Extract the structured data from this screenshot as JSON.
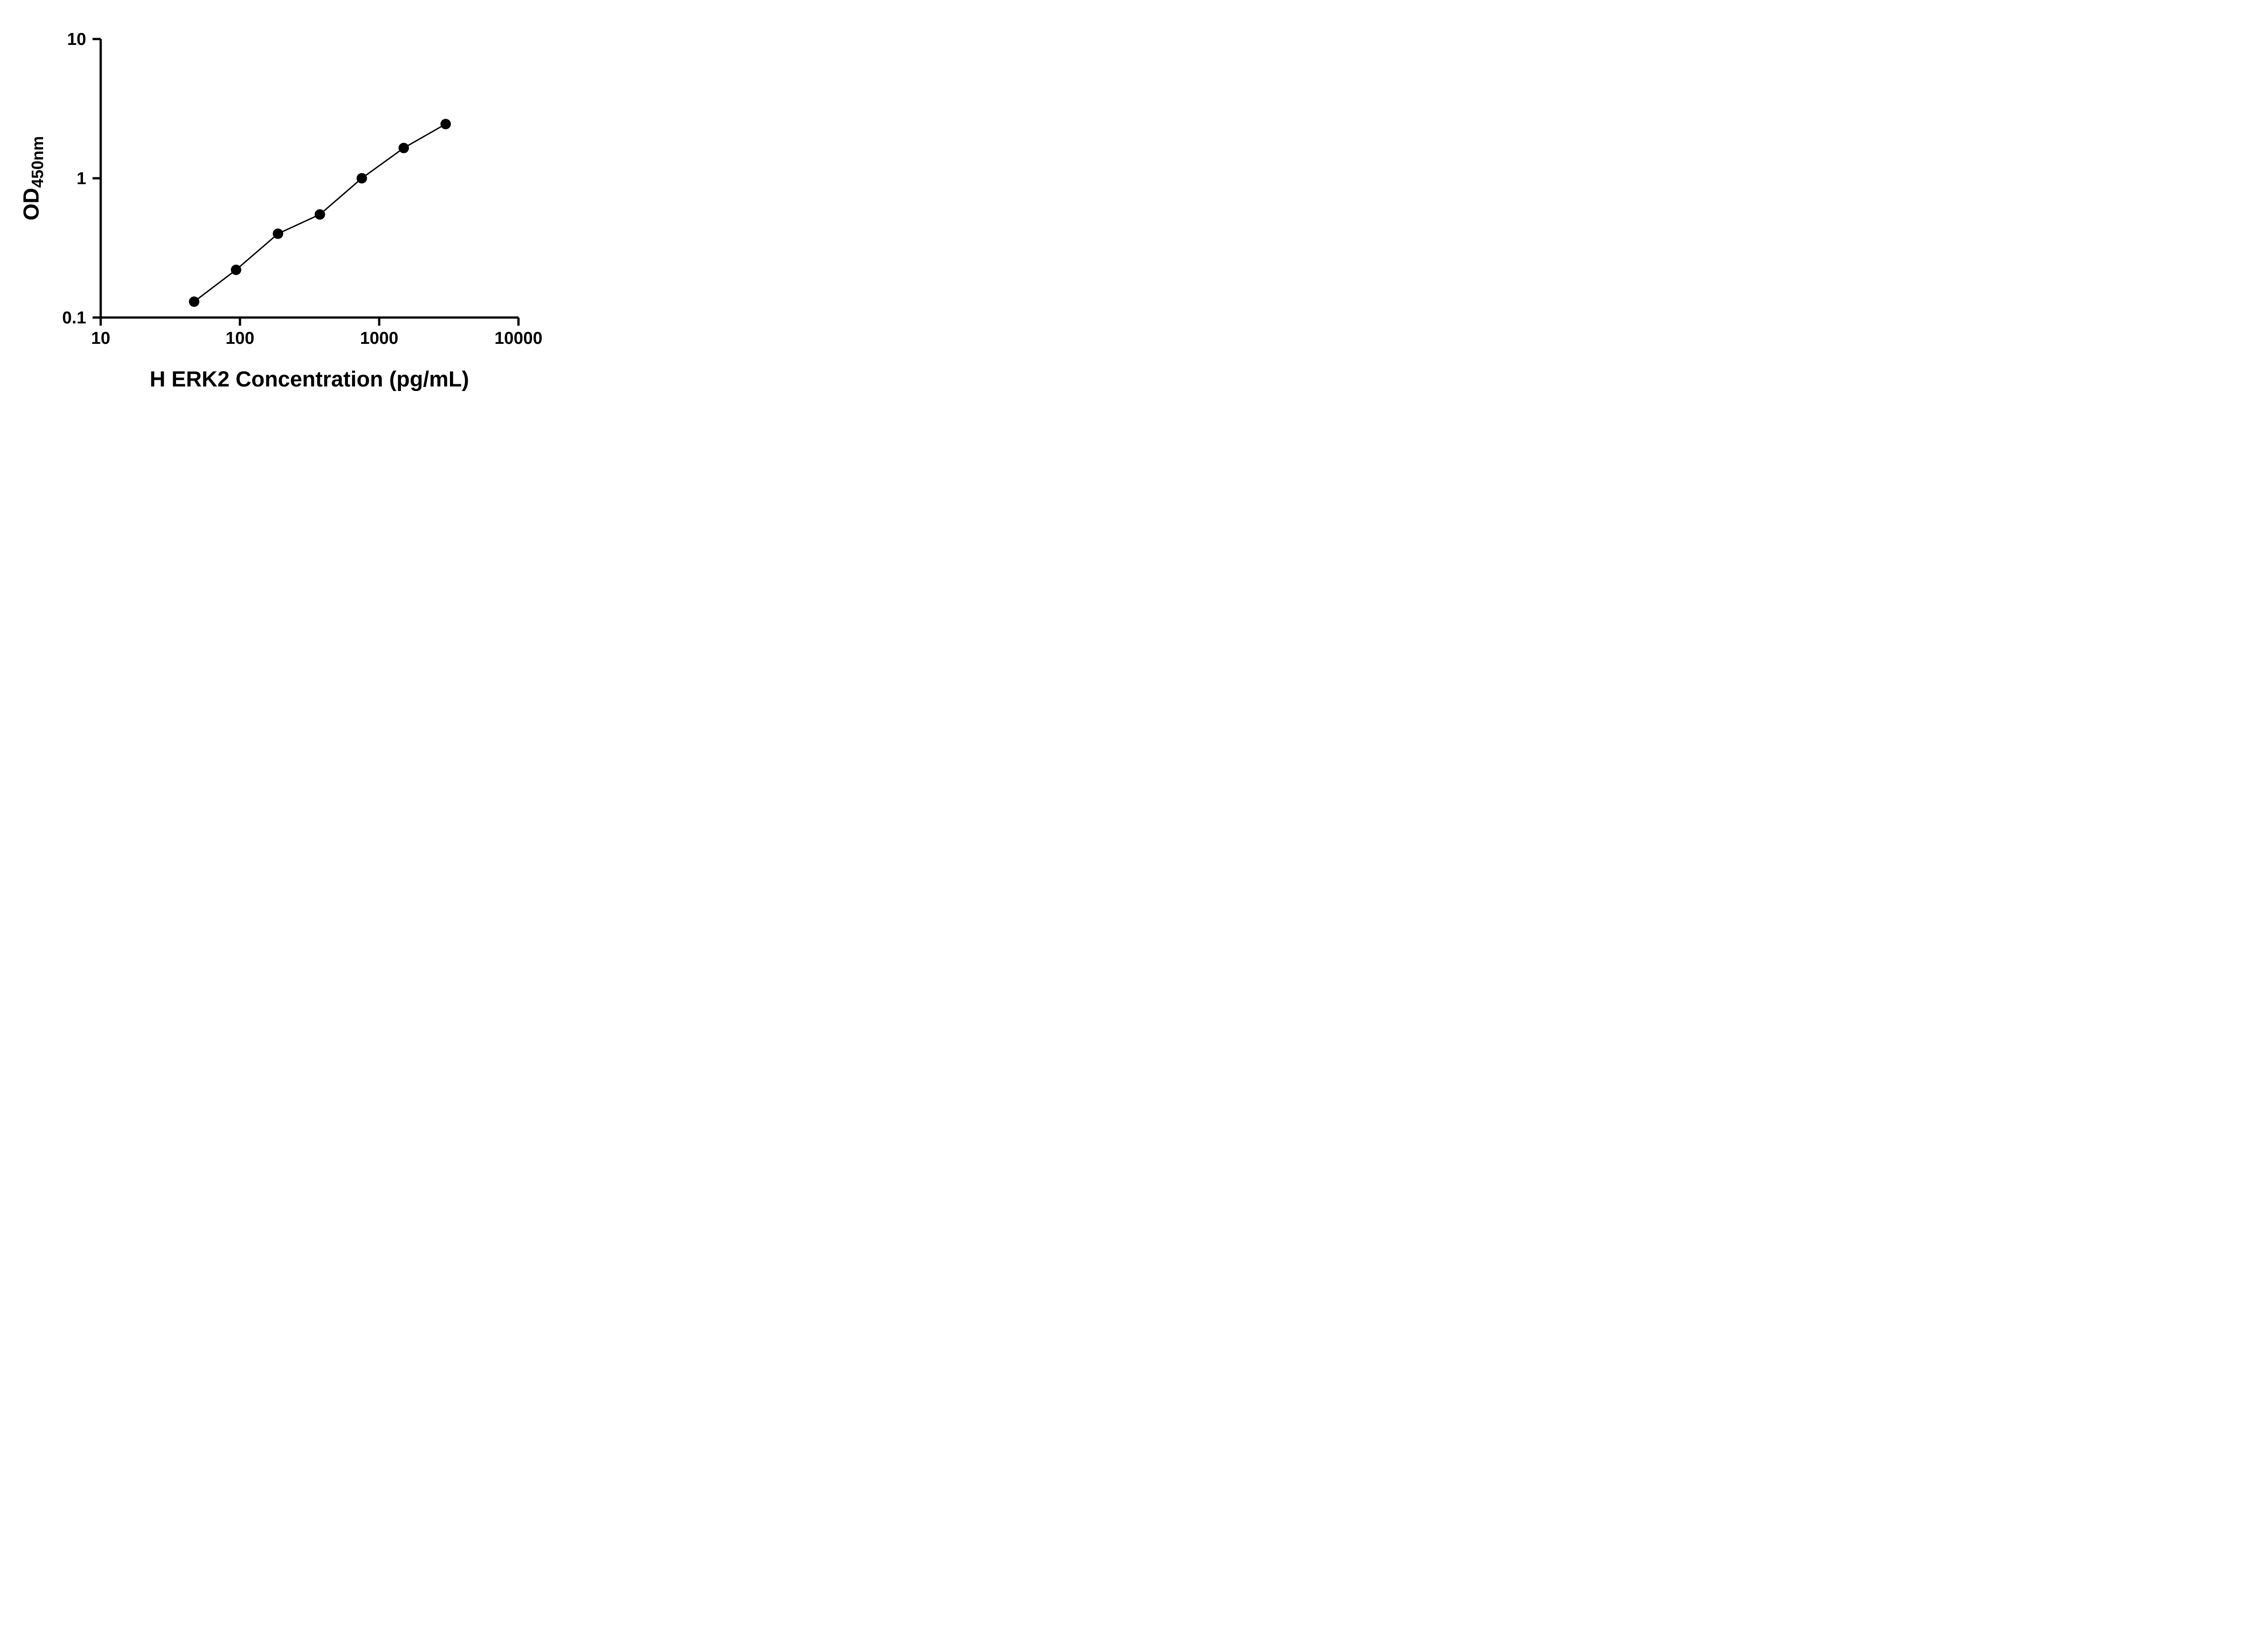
{
  "chart_data": {
    "type": "scatter",
    "title": "",
    "xlabel": "H ERK2 Concentration (pg/mL)",
    "ylabel_main": "OD",
    "ylabel_sub": "450nm",
    "x_scale": "log",
    "y_scale": "log",
    "xlim": [
      10,
      10000
    ],
    "ylim": [
      0.1,
      10
    ],
    "x_ticks": [
      10,
      100,
      1000,
      10000
    ],
    "x_tick_labels": [
      "10",
      "100",
      "1000",
      "10000"
    ],
    "y_ticks": [
      0.1,
      1,
      10
    ],
    "y_tick_labels": [
      "0.1",
      "1",
      "10"
    ],
    "x": [
      46.88,
      93.75,
      187.5,
      375,
      750,
      1500,
      3000
    ],
    "y": [
      0.13,
      0.22,
      0.4,
      0.55,
      1.0,
      1.65,
      2.45
    ],
    "grid": false,
    "legend": "none",
    "line_color": "#000000",
    "marker_color": "#000000",
    "background_color": "#ffffff"
  }
}
